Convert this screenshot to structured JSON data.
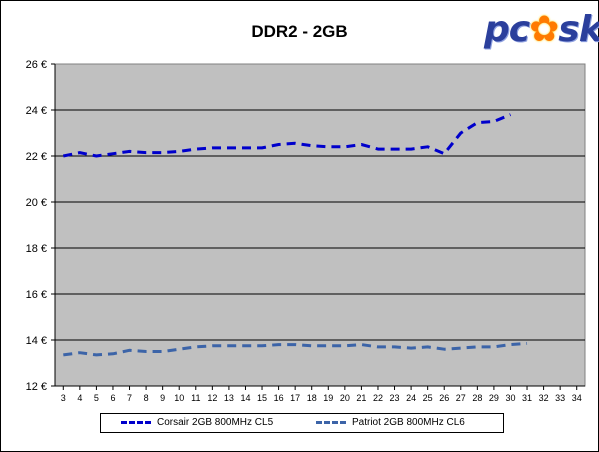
{
  "chart_data": {
    "type": "line",
    "title": "DDR2 - 2GB",
    "xlabel": "",
    "ylabel": "",
    "x_ticks": [
      3,
      4,
      5,
      6,
      7,
      8,
      9,
      10,
      11,
      12,
      13,
      14,
      15,
      16,
      17,
      18,
      19,
      20,
      21,
      22,
      23,
      24,
      25,
      26,
      27,
      28,
      29,
      30,
      31,
      32,
      33,
      34
    ],
    "xlim": [
      2.5,
      34.5
    ],
    "ylim": [
      12,
      26
    ],
    "y_ticks": [
      12,
      14,
      16,
      18,
      20,
      22,
      24,
      26
    ],
    "y_tick_suffix": " €",
    "grid": true,
    "plot_background": "#c0c0c0",
    "legend_position": "bottom",
    "series": [
      {
        "name": "Corsair 2GB 800MHz CL5",
        "color": "#0000cc",
        "x": [
          3,
          4,
          5,
          6,
          7,
          8,
          9,
          10,
          11,
          12,
          13,
          14,
          15,
          16,
          17,
          18,
          19,
          20,
          21,
          22,
          23,
          24,
          25,
          26,
          27,
          28,
          29,
          30
        ],
        "values": [
          22.0,
          22.15,
          22.0,
          22.1,
          22.2,
          22.15,
          22.15,
          22.2,
          22.3,
          22.35,
          22.35,
          22.35,
          22.35,
          22.5,
          22.55,
          22.45,
          22.4,
          22.4,
          22.5,
          22.3,
          22.3,
          22.3,
          22.4,
          22.1,
          23.0,
          23.45,
          23.5,
          23.8
        ]
      },
      {
        "name": "Patriot 2GB 800MHz CL6",
        "color": "#3c64a8",
        "x": [
          3,
          4,
          5,
          6,
          7,
          8,
          9,
          10,
          11,
          12,
          13,
          14,
          15,
          16,
          17,
          18,
          19,
          20,
          21,
          22,
          23,
          24,
          25,
          26,
          27,
          28,
          29,
          30,
          31
        ],
        "values": [
          13.35,
          13.45,
          13.35,
          13.4,
          13.55,
          13.5,
          13.5,
          13.6,
          13.7,
          13.75,
          13.75,
          13.75,
          13.75,
          13.8,
          13.8,
          13.75,
          13.75,
          13.75,
          13.8,
          13.7,
          13.7,
          13.65,
          13.7,
          13.6,
          13.65,
          13.7,
          13.7,
          13.8,
          13.85
        ]
      }
    ]
  },
  "logo": {
    "text_before": "pc",
    "flame": "✿",
    "text_after": "sk"
  }
}
